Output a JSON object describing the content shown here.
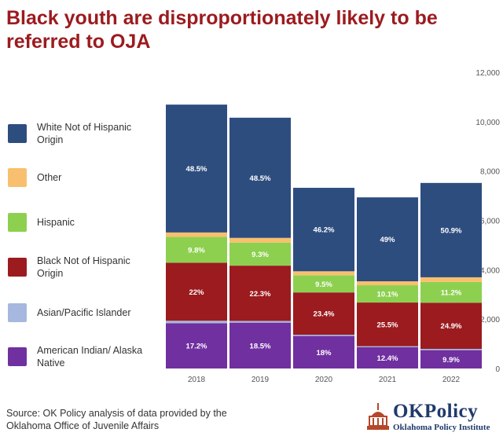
{
  "title": "Black youth are disproportionately likely to be referred to OJA",
  "chart_data": {
    "type": "bar",
    "stacked": true,
    "categories": [
      "2018",
      "2019",
      "2020",
      "2021",
      "2022"
    ],
    "totals": [
      10680,
      10040,
      7320,
      6940,
      7510
    ],
    "ylim": [
      0,
      12000
    ],
    "yticks": [
      "0",
      "2,000",
      "4,000",
      "6,000",
      "8,000",
      "10,000",
      "12,000"
    ],
    "ytick_values": [
      0,
      2000,
      4000,
      6000,
      8000,
      10000,
      12000
    ],
    "series": [
      {
        "name": "American Indian/ Alaska Native",
        "color": "#7030a0",
        "percents": [
          17.2,
          18.5,
          18,
          12.4,
          9.9
        ],
        "labels": [
          "17.2%",
          "18.5%",
          "18%",
          "12.4%",
          "9.9%"
        ]
      },
      {
        "name": "Asian/Pacific Islander",
        "color": "#a6b8dd",
        "percents": [
          0.9,
          0.7,
          0.7,
          0.6,
          0.7
        ],
        "labels": [
          "0.9%",
          "0.7%",
          "0.7%",
          "0.6%",
          "0.7%"
        ]
      },
      {
        "name": "Black Not of Hispanic Origin",
        "color": "#9b1b1f",
        "percents": [
          22,
          22.3,
          23.4,
          25.5,
          24.9
        ],
        "labels": [
          "22%",
          "22.3%",
          "23.4%",
          "25.5%",
          "24.9%"
        ]
      },
      {
        "name": "Hispanic",
        "color": "#8dd050",
        "percents": [
          9.8,
          9.3,
          9.5,
          10.1,
          11.2
        ],
        "labels": [
          "9.8%",
          "9.3%",
          "9.5%",
          "10.1%",
          "11.2%"
        ]
      },
      {
        "name": "Other",
        "color": "#f8c06e",
        "percents": [
          1.7,
          1.9,
          2.2,
          2.3,
          2.5
        ],
        "labels": [
          "1.7%",
          "1.9%",
          "2.2%",
          "2.3%",
          "2.5%"
        ]
      },
      {
        "name": "White Not of Hispanic Origin",
        "color": "#2e4d7f",
        "percents": [
          48.5,
          48.5,
          46.2,
          49,
          50.9
        ],
        "labels": [
          "48.5%",
          "48.5%",
          "46.2%",
          "49%",
          "50.9%"
        ]
      }
    ]
  },
  "legend": [
    {
      "label": "White Not of Hispanic Origin",
      "color": "#2e4d7f"
    },
    {
      "label": "Other",
      "color": "#f8c06e"
    },
    {
      "label": "Hispanic",
      "color": "#8dd050"
    },
    {
      "label": "Black Not of Hispanic Origin",
      "color": "#9b1b1f"
    },
    {
      "label": "Asian/Pacific Islander",
      "color": "#a6b8dd"
    },
    {
      "label": "American Indian/ Alaska Native",
      "color": "#7030a0"
    }
  ],
  "source": "Source: OK Policy analysis of data provided by the Oklahoma Office of Juvenile Affairs",
  "logo": {
    "name": "OKPolicy",
    "subtitle": "Oklahoma Policy Institute",
    "brand_color": "#1f3a6b",
    "accent_color": "#b5472a",
    "icon": "capitol-dome-icon"
  }
}
